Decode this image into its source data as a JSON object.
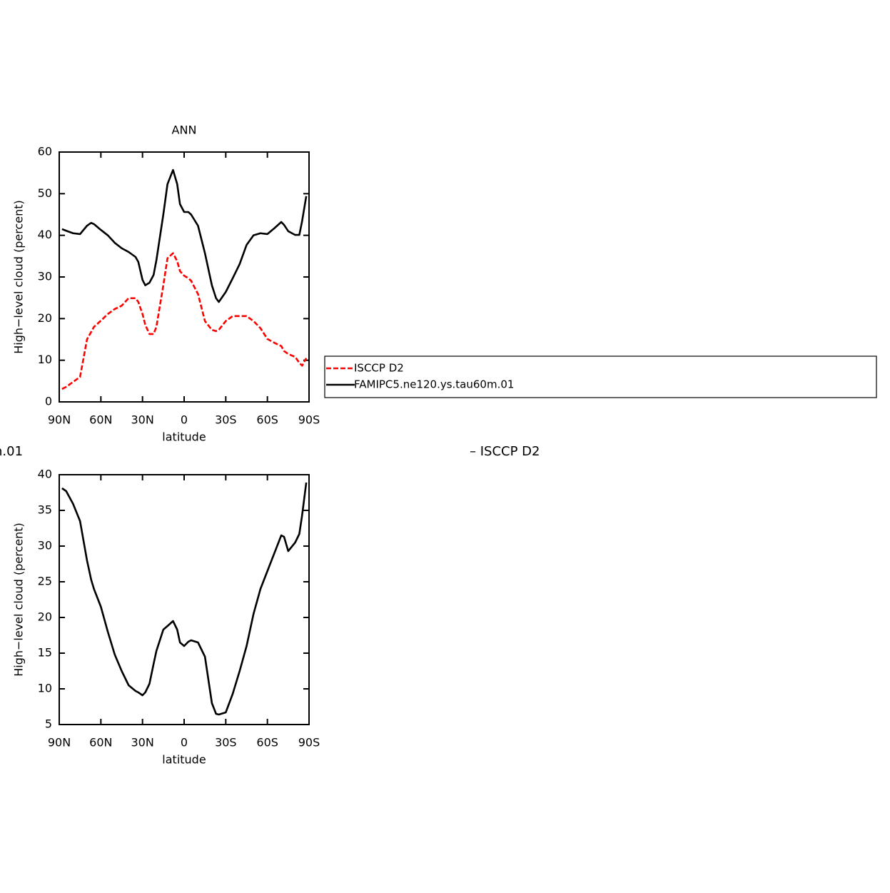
{
  "chart_data": [
    {
      "type": "line",
      "title": "ANN",
      "xlabel": "latitude",
      "ylabel": "High−level cloud (percent)",
      "x": [
        88,
        85,
        80,
        75,
        70,
        67,
        65,
        60,
        55,
        50,
        45,
        40,
        35,
        33,
        30,
        28,
        25,
        22,
        20,
        15,
        12,
        8,
        5,
        3,
        0,
        -3,
        -5,
        -10,
        -15,
        -20,
        -23,
        -25,
        -30,
        -35,
        -40,
        -45,
        -50,
        -55,
        -60,
        -65,
        -70,
        -72,
        -75,
        -80,
        -83,
        -85,
        -88
      ],
      "series": [
        {
          "name": "ISCCP D2",
          "color": "#ff0000",
          "dashed": true,
          "values": [
            3.1,
            3.6,
            4.8,
            6,
            15,
            16.8,
            18,
            19.5,
            21.1,
            22.3,
            23.1,
            24.9,
            24.9,
            24,
            21.1,
            18.5,
            16.3,
            16.3,
            18,
            28,
            34.5,
            35.7,
            33.8,
            31.4,
            30.3,
            29.7,
            29.1,
            25.9,
            19.4,
            17.3,
            17,
            17.3,
            19.4,
            20.6,
            20.6,
            20.6,
            19.4,
            17.7,
            15.1,
            14.2,
            13.4,
            12.2,
            11.5,
            10.8,
            9.4,
            8.7,
            10.5
          ]
        },
        {
          "name": "FAMIPC5.ne120.ys.tau60m.01",
          "color": "#000000",
          "dashed": false,
          "values": [
            41.5,
            41.1,
            40.5,
            40.3,
            42.3,
            43,
            42.7,
            41.3,
            40,
            38.2,
            36.9,
            36,
            34.8,
            33.6,
            29.3,
            28,
            28.6,
            30.5,
            34,
            45,
            52.3,
            55.7,
            52.3,
            47.5,
            45.6,
            45.6,
            45,
            42.3,
            35.7,
            28,
            24.9,
            24,
            26.4,
            29.7,
            33.1,
            37.7,
            40,
            40.5,
            40.3,
            41.7,
            43.2,
            42.5,
            41,
            40.1,
            40.1,
            43.4,
            49.4
          ]
        }
      ],
      "xlim": [
        90,
        -90
      ],
      "xticks": [
        {
          "value": 90,
          "label": "90N"
        },
        {
          "value": 60,
          "label": "60N"
        },
        {
          "value": 30,
          "label": "30N"
        },
        0,
        {
          "value": -30,
          "label": "30S"
        },
        {
          "value": -60,
          "label": "60S"
        },
        {
          "value": -90,
          "label": "90S"
        }
      ],
      "ylim": [
        0,
        60
      ],
      "yticks": [
        0,
        10,
        20,
        30,
        40,
        50,
        60
      ]
    },
    {
      "type": "line",
      "title_parts": [
        "n.01",
        "– ISCCP D2"
      ],
      "xlabel": "latitude",
      "ylabel": "High−level cloud (percent)",
      "x": [
        88,
        85,
        80,
        75,
        70,
        67,
        65,
        60,
        55,
        50,
        45,
        40,
        35,
        33,
        30,
        28,
        25,
        22,
        20,
        15,
        12,
        8,
        5,
        3,
        0,
        -3,
        -5,
        -10,
        -15,
        -20,
        -23,
        -25,
        -30,
        -35,
        -40,
        -45,
        -50,
        -55,
        -60,
        -65,
        -70,
        -72,
        -75,
        -80,
        -83,
        -85,
        -88
      ],
      "series": [
        {
          "color": "#000000",
          "dashed": false,
          "values": [
            38.1,
            37.7,
            35.9,
            33.5,
            28,
            25.3,
            24,
            21.5,
            18,
            14.8,
            12.5,
            10.5,
            9.7,
            9.5,
            9.1,
            9.5,
            10.7,
            13.5,
            15.3,
            18.3,
            18.8,
            19.5,
            18.3,
            16.5,
            16,
            16.6,
            16.8,
            16.5,
            14.5,
            8,
            6.5,
            6.4,
            6.7,
            9.3,
            12.5,
            16,
            20.5,
            24,
            26.5,
            29,
            31.5,
            31.3,
            29.3,
            30.5,
            31.7,
            34.3,
            38.9
          ]
        }
      ],
      "xlim": [
        90,
        -90
      ],
      "xticks": [
        {
          "value": 90,
          "label": "90N"
        },
        {
          "value": 60,
          "label": "60N"
        },
        {
          "value": 30,
          "label": "30N"
        },
        0,
        {
          "value": -30,
          "label": "30S"
        },
        {
          "value": -60,
          "label": "60S"
        },
        {
          "value": -90,
          "label": "90S"
        }
      ],
      "ylim": [
        5,
        40
      ],
      "yticks": [
        5,
        10,
        15,
        20,
        25,
        30,
        35,
        40
      ]
    }
  ]
}
